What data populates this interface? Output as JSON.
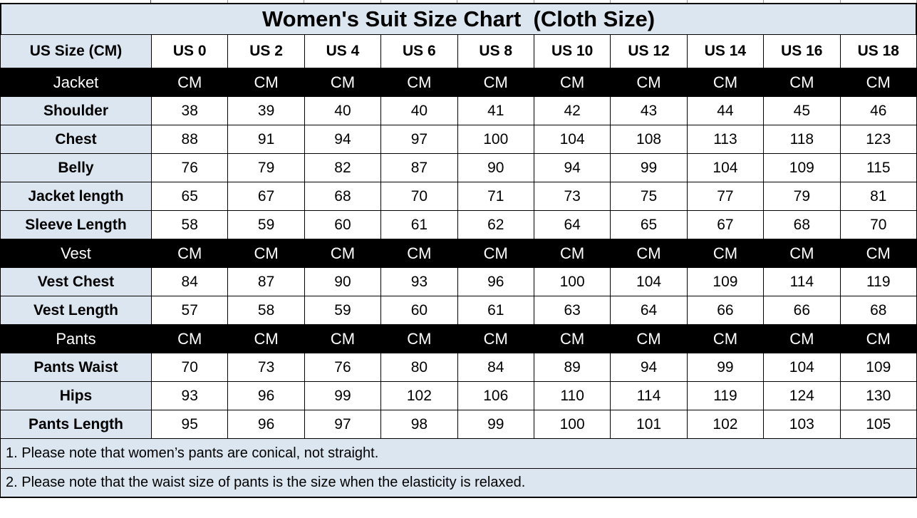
{
  "meta": {
    "title": "Women's Suit Size Chart  (Cloth Size)"
  },
  "colors": {
    "header_bg": "#dce6f1",
    "section_row_bg": "#000000",
    "section_row_text": "#ffffff",
    "cell_bg": "#ffffff",
    "border": "#000000",
    "text": "#000000"
  },
  "table": {
    "corner_label": "US Size (CM)",
    "size_columns": [
      "US 0",
      "US 2",
      "US 4",
      "US 6",
      "US 8",
      "US 10",
      "US 12",
      "US 14",
      "US 16",
      "US 18"
    ],
    "unit": "CM",
    "sections": [
      {
        "label": "Jacket",
        "rows": [
          {
            "label": "Shoulder",
            "values": [
              38,
              39,
              40,
              40,
              41,
              42,
              43,
              44,
              45,
              46
            ]
          },
          {
            "label": "Chest",
            "values": [
              88,
              91,
              94,
              97,
              100,
              104,
              108,
              113,
              118,
              123
            ]
          },
          {
            "label": "Belly",
            "values": [
              76,
              79,
              82,
              87,
              90,
              94,
              99,
              104,
              109,
              115
            ]
          },
          {
            "label": "Jacket length",
            "values": [
              65,
              67,
              68,
              70,
              71,
              73,
              75,
              77,
              79,
              81
            ]
          },
          {
            "label": "Sleeve Length",
            "values": [
              58,
              59,
              60,
              61,
              62,
              64,
              65,
              67,
              68,
              70
            ]
          }
        ]
      },
      {
        "label": "Vest",
        "rows": [
          {
            "label": "Vest Chest",
            "values": [
              84,
              87,
              90,
              93,
              96,
              100,
              104,
              109,
              114,
              119
            ]
          },
          {
            "label": "Vest Length",
            "values": [
              57,
              58,
              59,
              60,
              61,
              63,
              64,
              66,
              66,
              68
            ]
          }
        ]
      },
      {
        "label": "Pants",
        "rows": [
          {
            "label": "Pants Waist",
            "values": [
              70,
              73,
              76,
              80,
              84,
              89,
              94,
              99,
              104,
              109
            ]
          },
          {
            "label": "Hips",
            "values": [
              93,
              96,
              99,
              102,
              106,
              110,
              114,
              119,
              124,
              130
            ]
          },
          {
            "label": "Pants Length",
            "values": [
              95,
              96,
              97,
              98,
              99,
              100,
              101,
              102,
              103,
              105
            ]
          }
        ]
      }
    ]
  },
  "notes": [
    "1. Please note that women’s pants are conical, not straight.",
    "2. Please note that the waist size of pants is the size when the elasticity is relaxed."
  ]
}
